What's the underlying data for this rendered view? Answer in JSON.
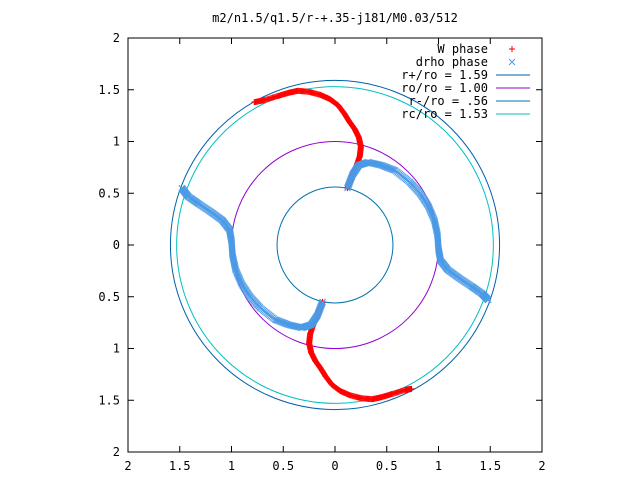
{
  "chart_data": {
    "type": "scatter",
    "title": "m2/n1.5/q1.5/r-+.35-j181/M0.03/512",
    "xlabel": "",
    "ylabel": "",
    "xlim": [
      -2,
      2
    ],
    "ylim": [
      -2,
      2
    ],
    "grid": false,
    "legend_position": "top-right",
    "x_ticks": [
      "2",
      "1.5",
      "1",
      "0.5",
      "0",
      "0.5",
      "1",
      "1.5",
      "2"
    ],
    "y_ticks": [
      "2",
      "1.5",
      "1",
      "0.5",
      "0",
      "0.5",
      "1",
      "1.5",
      "2"
    ],
    "circles": [
      {
        "name": "r+/ro = 1.59",
        "radius": 1.59,
        "color": "#0060ad"
      },
      {
        "name": "ro/ro = 1.00",
        "radius": 1.0,
        "color": "#9400d3"
      },
      {
        "name": "r-/ro = .56",
        "radius": 0.56,
        "color": "#0072b2"
      },
      {
        "name": "rc/ro = 1.53",
        "radius": 1.53,
        "color": "#00c0c0"
      }
    ],
    "series": [
      {
        "name": "W phase",
        "marker": "plus",
        "color": "#ff0000",
        "arms": [
          {
            "points": [
              [
                0.12,
                0.55
              ],
              [
                0.14,
                0.6
              ],
              [
                0.17,
                0.68
              ],
              [
                0.21,
                0.77
              ],
              [
                0.24,
                0.86
              ],
              [
                0.25,
                0.95
              ],
              [
                0.23,
                1.04
              ],
              [
                0.19,
                1.12
              ],
              [
                0.14,
                1.19
              ],
              [
                0.09,
                1.27
              ],
              [
                0.03,
                1.35
              ],
              [
                -0.05,
                1.41
              ],
              [
                -0.14,
                1.45
              ],
              [
                -0.25,
                1.48
              ],
              [
                -0.36,
                1.49
              ],
              [
                -0.45,
                1.47
              ],
              [
                -0.55,
                1.44
              ],
              [
                -0.68,
                1.4
              ],
              [
                -0.78,
                1.38
              ]
            ]
          },
          {
            "points": [
              [
                -0.12,
                -0.55
              ],
              [
                -0.14,
                -0.6
              ],
              [
                -0.17,
                -0.68
              ],
              [
                -0.21,
                -0.77
              ],
              [
                -0.24,
                -0.86
              ],
              [
                -0.25,
                -0.95
              ],
              [
                -0.23,
                -1.04
              ],
              [
                -0.19,
                -1.12
              ],
              [
                -0.14,
                -1.19
              ],
              [
                -0.09,
                -1.27
              ],
              [
                -0.03,
                -1.35
              ],
              [
                0.05,
                -1.41
              ],
              [
                0.14,
                -1.45
              ],
              [
                0.25,
                -1.48
              ],
              [
                0.36,
                -1.49
              ],
              [
                0.45,
                -1.47
              ],
              [
                0.55,
                -1.44
              ],
              [
                0.68,
                -1.4
              ],
              [
                0.74,
                -1.39
              ]
            ]
          }
        ]
      },
      {
        "name": "drho phase",
        "marker": "cross",
        "color": "#4a9ae6",
        "arms": [
          {
            "points": [
              [
                0.12,
                0.55
              ],
              [
                0.17,
                0.68
              ],
              [
                0.23,
                0.77
              ],
              [
                0.32,
                0.8
              ],
              [
                0.45,
                0.77
              ],
              [
                0.58,
                0.72
              ],
              [
                0.72,
                0.61
              ],
              [
                0.82,
                0.5
              ],
              [
                0.9,
                0.38
              ],
              [
                0.96,
                0.24
              ],
              [
                0.99,
                0.1
              ],
              [
                1.0,
                -0.04
              ],
              [
                1.02,
                -0.15
              ],
              [
                1.09,
                -0.24
              ],
              [
                1.2,
                -0.32
              ],
              [
                1.32,
                -0.4
              ],
              [
                1.42,
                -0.47
              ],
              [
                1.48,
                -0.53
              ]
            ]
          },
          {
            "points": [
              [
                -0.12,
                -0.55
              ],
              [
                -0.17,
                -0.68
              ],
              [
                -0.23,
                -0.77
              ],
              [
                -0.32,
                -0.8
              ],
              [
                -0.45,
                -0.77
              ],
              [
                -0.58,
                -0.72
              ],
              [
                -0.72,
                -0.61
              ],
              [
                -0.82,
                -0.5
              ],
              [
                -0.9,
                -0.38
              ],
              [
                -0.96,
                -0.24
              ],
              [
                -0.99,
                -0.1
              ],
              [
                -1.0,
                0.04
              ],
              [
                -1.02,
                0.15
              ],
              [
                -1.09,
                0.24
              ],
              [
                -1.2,
                0.32
              ],
              [
                -1.32,
                0.4
              ],
              [
                -1.42,
                0.47
              ],
              [
                -1.48,
                0.55
              ]
            ]
          }
        ]
      }
    ]
  }
}
